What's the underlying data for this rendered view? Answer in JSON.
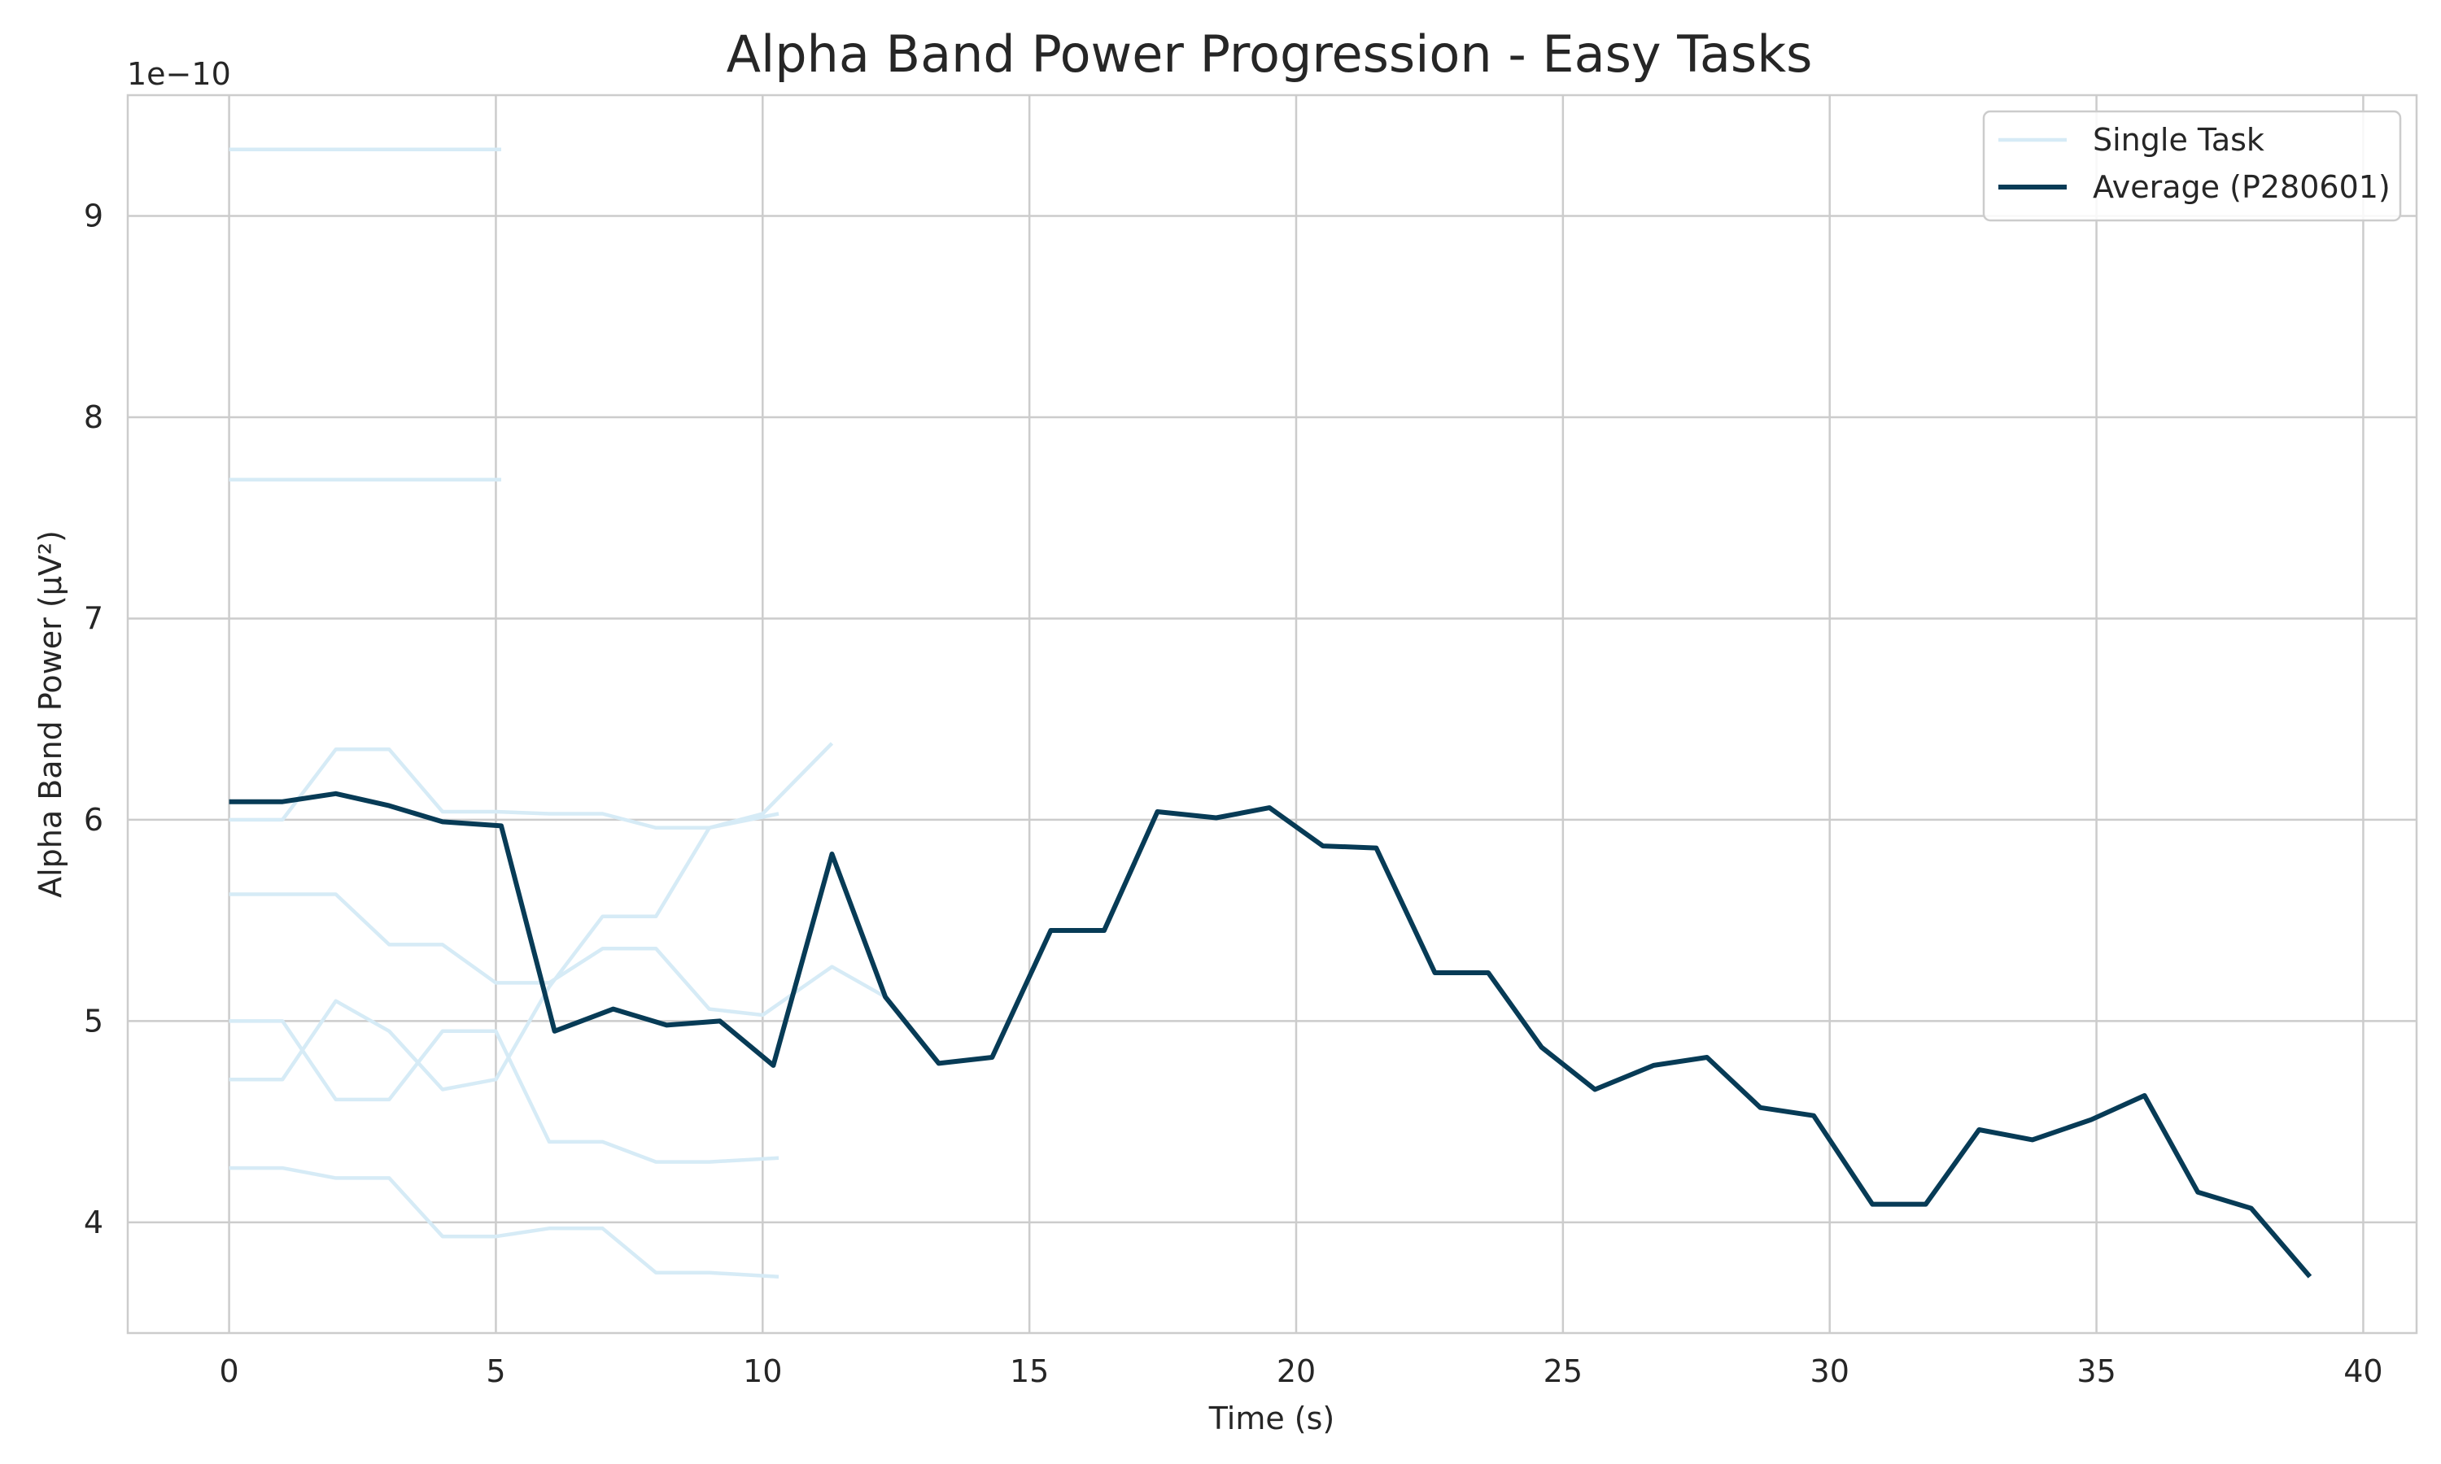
{
  "chart_data": {
    "type": "line",
    "title": "Alpha Band Power Progression - Easy Tasks",
    "xlabel": "Time (s)",
    "ylabel": "Alpha Band Power (µV²)",
    "y_offset_label": "1e−10",
    "xlim": [
      -1.9,
      41.0
    ],
    "ylim": [
      3.45,
      9.6
    ],
    "x_ticks": [
      0,
      5,
      10,
      15,
      20,
      25,
      30,
      35,
      40
    ],
    "x_tick_labels": [
      "0",
      "5",
      "10",
      "15",
      "20",
      "25",
      "30",
      "35",
      "40"
    ],
    "y_ticks": [
      4,
      5,
      6,
      7,
      8,
      9
    ],
    "y_tick_labels": [
      "4",
      "5",
      "6",
      "7",
      "8",
      "9"
    ],
    "grid": true,
    "legend_position": "top-right",
    "legend": [
      "Single Task",
      "Average (P280601)"
    ],
    "colors": {
      "single_task": "#d6ebf6",
      "average": "#073b56",
      "grid": "#cccccc"
    },
    "series": [
      {
        "name": "Single Task",
        "x": [
          0,
          1,
          2,
          3,
          4,
          5.1
        ],
        "y": [
          9.33,
          9.33,
          9.33,
          9.33,
          9.33,
          9.33
        ]
      },
      {
        "name": "Single Task",
        "x": [
          0,
          1,
          2,
          3,
          4,
          5.1
        ],
        "y": [
          7.69,
          7.69,
          7.69,
          7.69,
          7.69,
          7.69
        ]
      },
      {
        "name": "Single Task",
        "x": [
          0,
          1,
          2,
          3,
          4,
          5,
          6,
          7,
          8,
          9,
          10,
          11.3
        ],
        "y": [
          6.0,
          6.0,
          6.35,
          6.35,
          6.04,
          6.04,
          6.03,
          6.03,
          5.96,
          5.96,
          6.03,
          6.38
        ]
      },
      {
        "name": "Single Task",
        "x": [
          0,
          1,
          2,
          3,
          4,
          5,
          6,
          7,
          8,
          9,
          10,
          11.3,
          12.3
        ],
        "y": [
          5.63,
          5.63,
          5.63,
          5.38,
          5.38,
          5.19,
          5.19,
          5.36,
          5.36,
          5.06,
          5.03,
          5.27,
          5.12
        ]
      },
      {
        "name": "Single Task",
        "x": [
          0,
          1,
          2,
          3,
          4,
          5,
          6,
          7,
          8,
          9,
          10.3
        ],
        "y": [
          5.0,
          5.0,
          4.61,
          4.61,
          4.95,
          4.95,
          4.4,
          4.4,
          4.3,
          4.3,
          4.32
        ]
      },
      {
        "name": "Single Task",
        "x": [
          0,
          1,
          2,
          3,
          4,
          5,
          6,
          7,
          8,
          9,
          10.3
        ],
        "y": [
          4.71,
          4.71,
          5.1,
          4.95,
          4.66,
          4.71,
          5.17,
          5.52,
          5.52,
          5.96,
          6.03
        ]
      },
      {
        "name": "Single Task",
        "x": [
          0,
          1,
          2,
          3,
          4,
          5,
          6,
          7,
          8,
          9,
          10.3
        ],
        "y": [
          4.27,
          4.27,
          4.22,
          4.22,
          3.93,
          3.93,
          3.97,
          3.97,
          3.75,
          3.75,
          3.73
        ]
      },
      {
        "name": "Average (P280601)",
        "x": [
          0,
          1,
          2,
          3,
          4,
          5.1,
          6.1,
          7.2,
          8.2,
          9.2,
          10.2,
          11.3,
          12.3,
          13.3,
          14.3,
          15.4,
          16.4,
          17.4,
          18.5,
          19.5,
          20.5,
          21.5,
          22.6,
          23.6,
          24.6,
          25.6,
          26.7,
          27.7,
          28.7,
          29.7,
          30.8,
          31.8,
          32.8,
          33.8,
          34.9,
          35.9,
          36.9,
          37.9,
          39.0
        ],
        "y": [
          6.09,
          6.09,
          6.13,
          6.07,
          5.99,
          5.97,
          4.95,
          5.06,
          4.98,
          5.0,
          4.78,
          5.83,
          5.12,
          4.79,
          4.82,
          5.45,
          5.45,
          6.04,
          6.01,
          6.06,
          5.87,
          5.86,
          5.24,
          5.24,
          4.87,
          4.66,
          4.78,
          4.82,
          4.57,
          4.53,
          4.09,
          4.09,
          4.46,
          4.41,
          4.51,
          4.63,
          4.15,
          4.07,
          3.73
        ]
      }
    ]
  }
}
